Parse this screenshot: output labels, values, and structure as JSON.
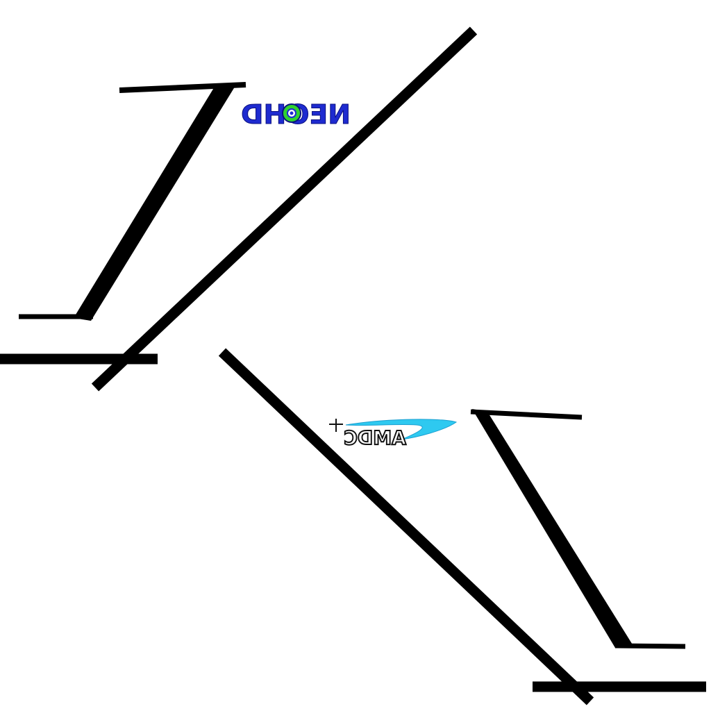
{
  "colors": {
    "background": "#ffffff",
    "stroke": "#000000",
    "logo_primary_blue": "#1e2bd0",
    "logo_accent_green": "#2fd22f",
    "logo_accent_cyan": "#2ec9f0",
    "logo_dark": "#111111"
  },
  "logos": {
    "top": {
      "text": "NEOHD",
      "icon": "eye-icon"
    },
    "bottom": {
      "text": "AMDC",
      "icon": "sparkle-plus-icon"
    }
  }
}
